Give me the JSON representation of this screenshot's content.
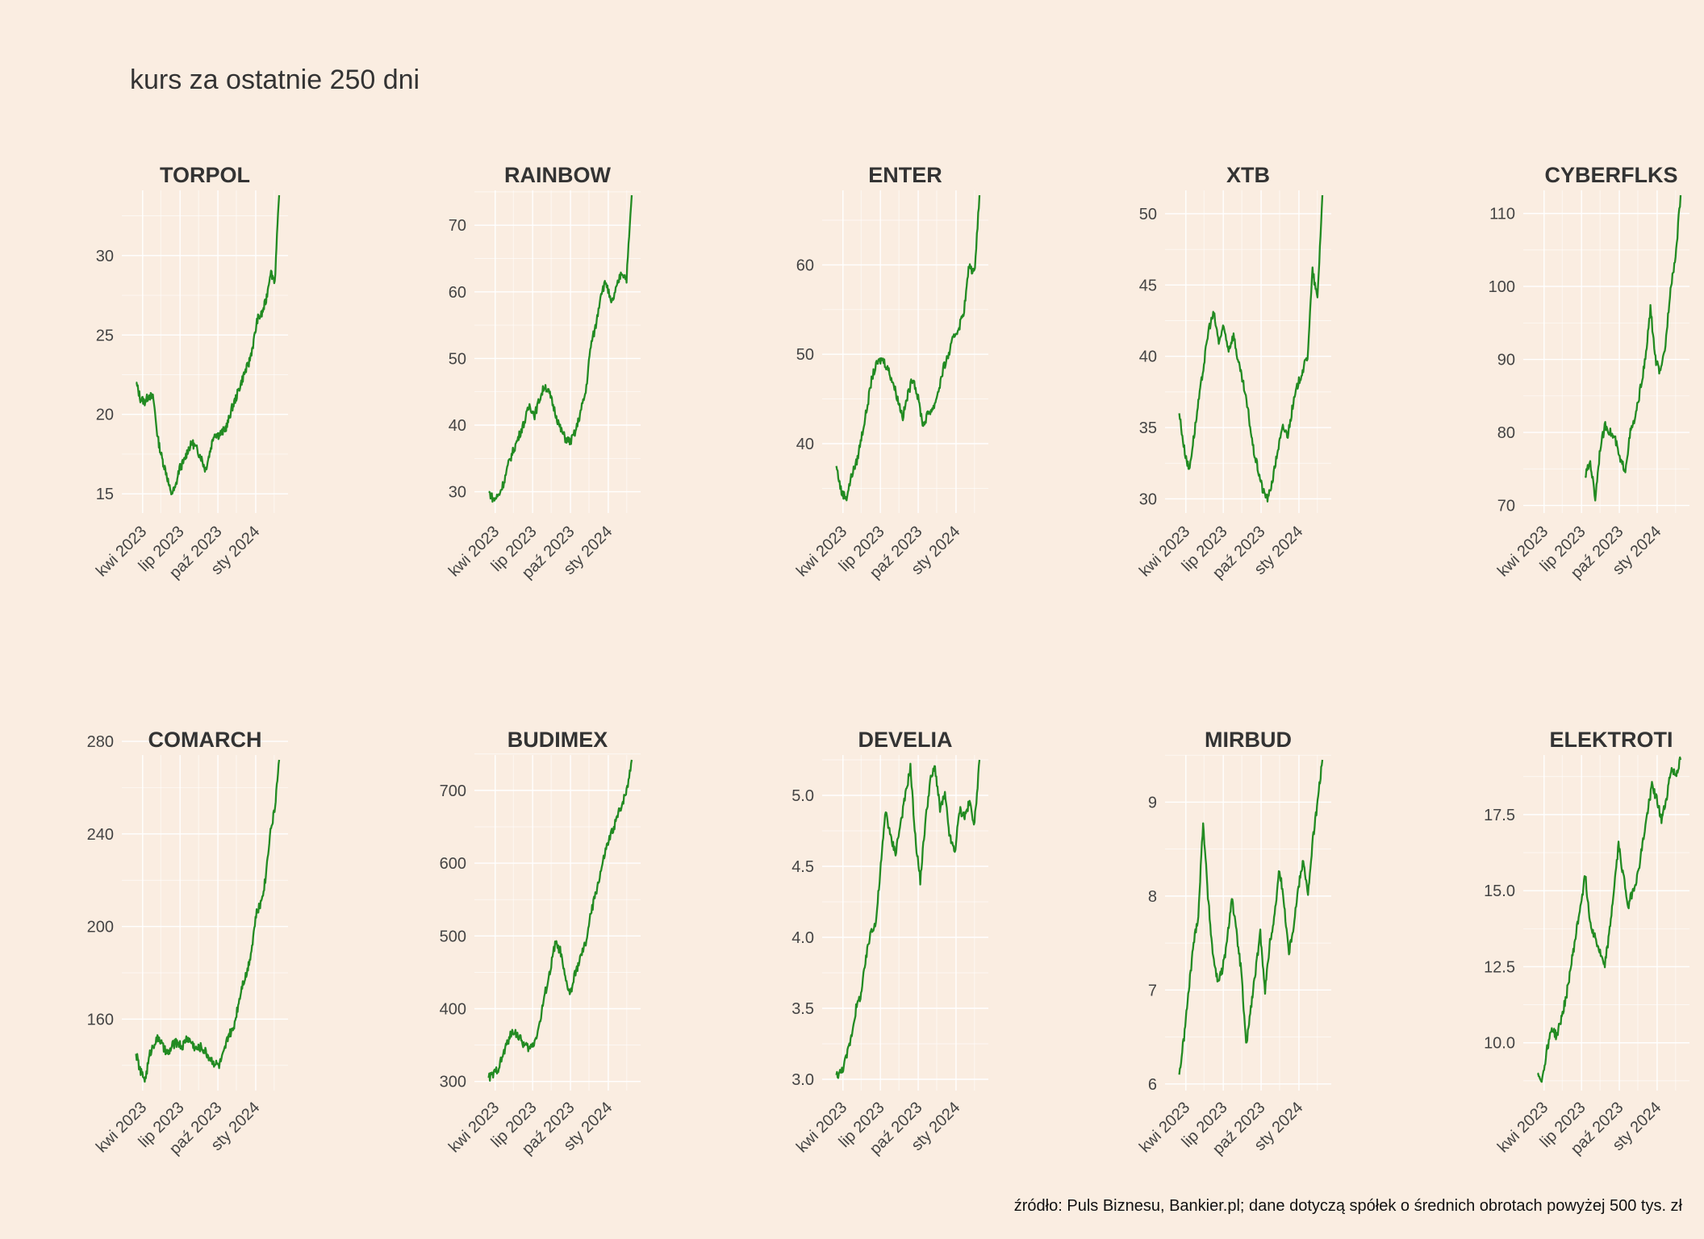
{
  "title": "kurs za ostatnie 250 dni",
  "caption": "źródło: Puls Biznesu, Bankier.pl; dane dotyczą spółek o średnich obrotach powyżej 500 tys. zł",
  "colors": {
    "background": "#FAEDE1",
    "grid": "#FFFFFF",
    "line": "#228B22",
    "text": "#444444",
    "title": "#333333"
  },
  "x_tick_labels": [
    "kwi 2023",
    "lip 2023",
    "paź 2023",
    "sty 2024"
  ],
  "chart_data": [
    {
      "type": "line",
      "title": "TORPOL",
      "x_start": "2023-03-01",
      "x_end": "2024-02-29",
      "yticks": [
        15,
        20,
        25,
        30
      ],
      "ylim": [
        14.5,
        33.8
      ],
      "y": [
        22.0,
        21.0,
        20.8,
        21.2,
        21.0,
        18.5,
        17.2,
        16.3,
        15.0,
        15.3,
        16.6,
        17.0,
        17.8,
        18.2,
        17.8,
        17.3,
        16.5,
        17.6,
        18.8,
        18.7,
        18.9,
        19.3,
        20.3,
        21.0,
        21.8,
        22.6,
        23.2,
        24.4,
        26.0,
        26.3,
        27.2,
        29.0,
        28.4,
        33.8
      ]
    },
    {
      "type": "line",
      "title": "RAINBOW",
      "x_start": "2023-03-01",
      "x_end": "2024-02-29",
      "yticks": [
        30,
        40,
        50,
        60,
        70
      ],
      "ylim": [
        28.5,
        74.5
      ],
      "y": [
        30.0,
        28.8,
        29.5,
        31.5,
        34.5,
        36.5,
        38.5,
        40.5,
        43.0,
        41.5,
        44.0,
        46.0,
        44.5,
        42.0,
        39.5,
        38.0,
        37.5,
        39.0,
        42.0,
        45.0,
        52.0,
        55.0,
        60.0,
        61.5,
        58.0,
        60.5,
        63.0,
        62.0,
        74.5
      ]
    },
    {
      "type": "line",
      "title": "ENTER",
      "x_start": "2023-03-01",
      "x_end": "2024-02-29",
      "yticks": [
        40,
        50,
        60
      ],
      "ylim": [
        33.5,
        67.8
      ],
      "y": [
        37.5,
        34.5,
        34.0,
        36.5,
        38.0,
        41.0,
        44.0,
        47.5,
        49.0,
        49.5,
        48.5,
        47.0,
        45.0,
        43.0,
        45.5,
        47.5,
        45.0,
        42.0,
        43.5,
        44.0,
        46.0,
        48.5,
        50.0,
        52.0,
        53.0,
        55.0,
        60.0,
        59.0,
        67.8
      ]
    },
    {
      "type": "line",
      "title": "XTB",
      "x_start": "2023-03-01",
      "x_end": "2024-02-29",
      "yticks": [
        30,
        35,
        40,
        45,
        50
      ],
      "ylim": [
        29.8,
        51.3
      ],
      "y": [
        36.0,
        33.5,
        32.0,
        34.5,
        37.0,
        39.5,
        42.0,
        43.0,
        41.0,
        42.0,
        40.5,
        41.5,
        39.5,
        38.0,
        36.0,
        33.5,
        32.0,
        30.5,
        30.0,
        31.5,
        33.5,
        35.0,
        34.5,
        36.5,
        38.0,
        39.0,
        40.0,
        46.0,
        44.0,
        51.3
      ]
    },
    {
      "type": "line",
      "title": "CYBERFLKS",
      "x_start": "2023-03-01",
      "x_end": "2024-02-29",
      "yticks": [
        70,
        80,
        90,
        100,
        110
      ],
      "ylim": [
        70.5,
        112.5
      ],
      "x_data_start": "2023-07-10",
      "y": [
        74.0,
        76.0,
        71.0,
        78.0,
        81.0,
        80.0,
        79.0,
        76.0,
        75.0,
        80.0,
        82.0,
        86.0,
        90.0,
        97.0,
        90.0,
        88.0,
        92.0,
        100.0,
        104.0,
        112.5
      ]
    },
    {
      "type": "line",
      "title": "COMARCH",
      "x_start": "2023-03-01",
      "x_end": "2024-02-29",
      "yticks": [
        160,
        200,
        240,
        280
      ],
      "ylim": [
        134.0,
        272.0
      ],
      "y": [
        145,
        137,
        134,
        145,
        150,
        152,
        147,
        145,
        149,
        150,
        148,
        152,
        150,
        147,
        148,
        146,
        143,
        141,
        140,
        145,
        153,
        155,
        165,
        175,
        180,
        190,
        205,
        210,
        220,
        240,
        250,
        272
      ]
    },
    {
      "type": "line",
      "title": "BUDIMEX",
      "x_start": "2023-03-01",
      "x_end": "2024-02-29",
      "yticks": [
        300,
        400,
        500,
        600,
        700
      ],
      "ylim": [
        303,
        742
      ],
      "y": [
        305,
        310,
        320,
        340,
        360,
        370,
        360,
        350,
        345,
        355,
        380,
        420,
        450,
        490,
        480,
        440,
        420,
        450,
        470,
        490,
        530,
        560,
        590,
        620,
        640,
        660,
        680,
        700,
        742
      ]
    },
    {
      "type": "line",
      "title": "DEVELIA",
      "x_start": "2023-03-01",
      "x_end": "2024-02-29",
      "yticks": [
        3.0,
        3.5,
        4.0,
        4.5,
        5.0
      ],
      "ylim": [
        3.0,
        5.25
      ],
      "y": [
        3.03,
        3.05,
        3.15,
        3.3,
        3.5,
        3.6,
        3.85,
        4.05,
        4.1,
        4.5,
        4.9,
        4.7,
        4.6,
        4.8,
        5.0,
        5.2,
        4.7,
        4.4,
        4.8,
        5.1,
        5.2,
        4.9,
        5.0,
        4.7,
        4.6,
        4.9,
        4.85,
        4.95,
        4.8,
        5.25
      ]
    },
    {
      "type": "line",
      "title": "MIRBUD",
      "x_start": "2023-03-01",
      "x_end": "2024-02-29",
      "yticks": [
        6,
        7,
        8,
        9
      ],
      "ylim": [
        6.05,
        9.45
      ],
      "y": [
        6.1,
        6.5,
        7.0,
        7.5,
        7.8,
        8.8,
        8.0,
        7.4,
        7.1,
        7.2,
        7.5,
        8.0,
        7.6,
        7.2,
        6.4,
        6.8,
        7.2,
        7.6,
        7.0,
        7.5,
        7.8,
        8.3,
        7.9,
        7.4,
        7.7,
        8.1,
        8.4,
        8.0,
        8.6,
        9.0,
        9.45
      ]
    },
    {
      "type": "line",
      "title": "ELEKTROTI",
      "x_start": "2023-03-01",
      "x_end": "2024-02-29",
      "yticks": [
        10.0,
        12.5,
        15.0,
        17.5
      ],
      "ylim": [
        8.8,
        19.3
      ],
      "y": [
        9.0,
        8.8,
        9.8,
        10.5,
        10.2,
        10.8,
        11.5,
        12.5,
        13.5,
        14.5,
        15.5,
        14.0,
        13.5,
        13.0,
        12.5,
        13.5,
        15.0,
        16.5,
        15.5,
        14.5,
        15.0,
        15.5,
        16.5,
        17.5,
        18.5,
        18.0,
        17.3,
        18.0,
        19.0,
        18.8,
        19.3
      ]
    }
  ]
}
